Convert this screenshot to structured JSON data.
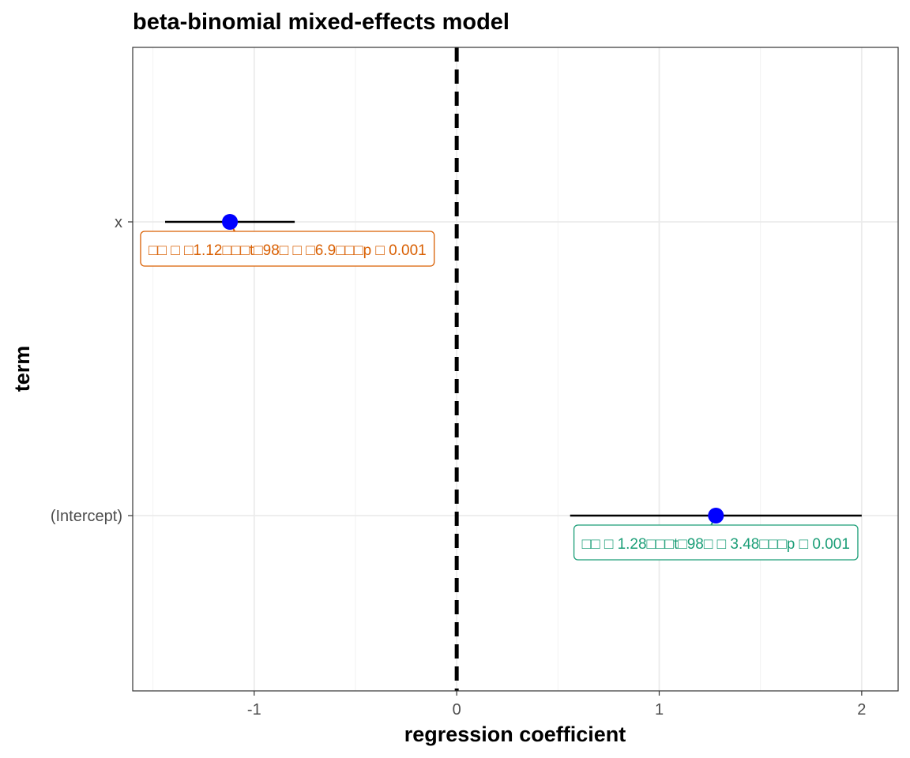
{
  "chart_data": {
    "type": "forest",
    "title": "beta-binomial mixed-effects model",
    "xlabel": "regression coefficient",
    "ylabel": "term",
    "xlim": [
      -1.6,
      2.18
    ],
    "x_ticks": [
      -1,
      0,
      1,
      2
    ],
    "x_tick_labels": [
      "-1",
      "0",
      "1",
      "2"
    ],
    "reference_line": {
      "x": 0,
      "style": "dashed"
    },
    "grid": true,
    "terms": [
      {
        "term": "x",
        "estimate": -1.12,
        "conf_low": -1.44,
        "conf_high": -0.8,
        "label_color": "#D95F02",
        "annotation": "□□ □ □1.12□□□t□98□ □ □6.9□□□p □ 0.001"
      },
      {
        "term": "(Intercept)",
        "estimate": 1.28,
        "conf_low": 0.56,
        "conf_high": 2.0,
        "label_color": "#1B9E77",
        "annotation": "□□ □ 1.28□□□t□98□ □ 3.48□□□p □ 0.001"
      }
    ],
    "point_color": "#0000FF",
    "errorbar_color": "#000000"
  }
}
